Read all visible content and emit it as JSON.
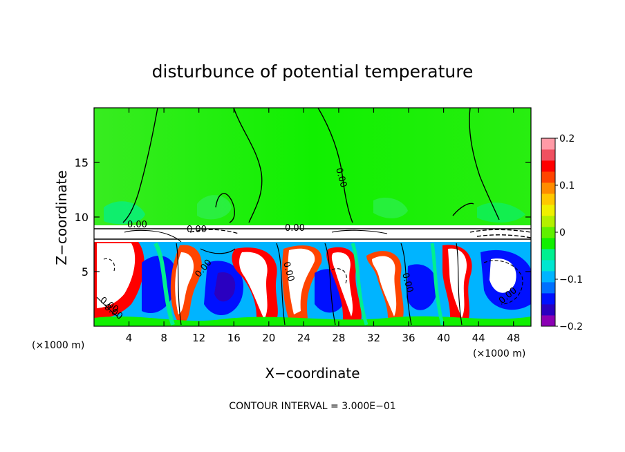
{
  "chart_data": {
    "type": "heatmap",
    "title": "disturbunce of potential temperature",
    "xlabel": "X−coordinate",
    "ylabel": "Z−coordinate",
    "x_unit": "(×1000 m)",
    "x_unit_right": "(×1000 m)",
    "xlim": [
      0,
      50
    ],
    "ylim": [
      0,
      20
    ],
    "x_ticks": [
      4,
      8,
      12,
      16,
      20,
      24,
      28,
      32,
      36,
      40,
      44,
      48
    ],
    "x_tick_labels": [
      "4",
      "8",
      "12",
      "16",
      "20",
      "24",
      "28",
      "32",
      "36",
      "40",
      "44",
      "48"
    ],
    "y_ticks": [
      5,
      10,
      15
    ],
    "y_tick_labels": [
      "5",
      "10",
      "15"
    ],
    "colorbar": {
      "range": [
        -0.2,
        0.2
      ],
      "ticks": [
        0.2,
        0.1,
        0,
        -0.1,
        -0.2
      ],
      "tick_labels": [
        "0.2",
        "0.1",
        "0",
        "−0.1",
        "−0.2"
      ],
      "colors": [
        "#8b00b4",
        "#2a00c0",
        "#0010ff",
        "#0070ff",
        "#00b4ff",
        "#00e6d0",
        "#00f090",
        "#10f000",
        "#60f000",
        "#b4f000",
        "#f0f000",
        "#ffc800",
        "#ff8c00",
        "#ff4400",
        "#ff0000",
        "#f05060",
        "#ff9aa6"
      ]
    },
    "contour_labels": [
      "0.00",
      "0.00",
      "0.00",
      "0.00",
      "0.00",
      "0.00",
      "0.00",
      "0.00",
      "0.00",
      "0.00"
    ],
    "contour_interval_label": "CONTOUR INTERVAL = 3.000E−01"
  }
}
